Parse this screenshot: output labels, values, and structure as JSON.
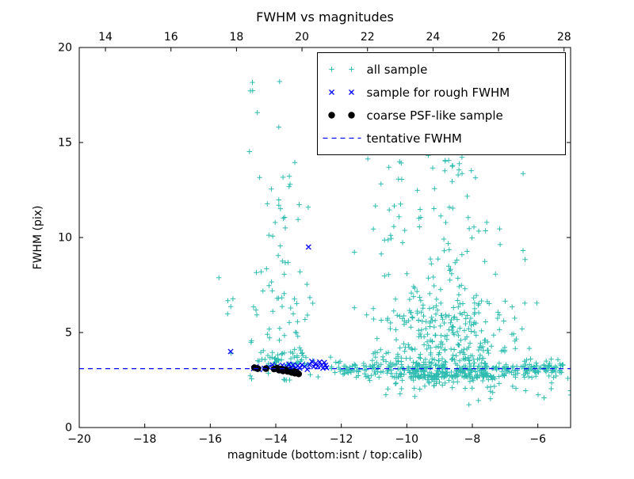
{
  "chart_data": {
    "type": "scatter",
    "title": "FWHM vs magnitudes",
    "xlabel": "magnitude (bottom:isnt / top:calib)",
    "ylabel": "FWHM (pix)",
    "grid": false,
    "legend": {
      "position": "upper right"
    },
    "x_bottom": {
      "min": -20,
      "max": -5,
      "tick_values": [
        -20,
        -18,
        -16,
        -14,
        -12,
        -10,
        -8,
        -6
      ],
      "tick_labels": [
        "−20",
        "−18",
        "−16",
        "−14",
        "−12",
        "−10",
        "−8",
        "−6"
      ]
    },
    "x_top": {
      "offset": 33.2,
      "tick_values": [
        14,
        16,
        18,
        20,
        22,
        24,
        26,
        28
      ],
      "tick_labels": [
        "14",
        "16",
        "18",
        "20",
        "22",
        "24",
        "26",
        "28"
      ]
    },
    "y_axis": {
      "min": 0,
      "max": 20,
      "tick_values": [
        0,
        5,
        10,
        15,
        20
      ],
      "tick_labels": [
        "0",
        "5",
        "10",
        "15",
        "20"
      ]
    },
    "tentative_fwhm": 3.1,
    "series": [
      {
        "id": "all-sample",
        "name": "all sample",
        "marker": "plus",
        "color": "#2fbcb0",
        "seed": 20,
        "clusters": [
          {
            "count": 55,
            "x": {
              "dist": "normal",
              "mean": -13.75,
              "sigma": 0.45,
              "clip": [
                -15.0,
                -12.4
              ]
            },
            "y": {
              "dist": "normal",
              "mean": 3.4,
              "sigma": 0.45,
              "clip": [
                2.5,
                4.8
              ]
            }
          },
          {
            "count": 80,
            "x": {
              "dist": "normal",
              "mean": -13.8,
              "sigma": 0.45,
              "clip": [
                -15.1,
                -12.5
              ]
            },
            "y": {
              "dist": "pow",
              "base": 3.5,
              "p": 1.6,
              "scale": 10.5,
              "clip": [
                3.5,
                14.2
              ]
            }
          },
          {
            "count": 7,
            "x": {
              "dist": "normal",
              "mean": -14.2,
              "sigma": 0.5,
              "clip": [
                -15.0,
                -13.0
              ]
            },
            "y": {
              "dist": "uniform",
              "min": 14.5,
              "max": 18.7
            }
          },
          {
            "count": 6,
            "x": {
              "dist": "normal",
              "mean": -15.4,
              "sigma": 0.2,
              "clip": [
                -15.8,
                -15.0
              ]
            },
            "y": {
              "dist": "normal",
              "mean": 6.0,
              "sigma": 1.8,
              "clip": [
                3.5,
                9.0
              ]
            }
          },
          {
            "count": 430,
            "x": {
              "dist": "normal",
              "mean": -8.7,
              "sigma": 1.05,
              "clip": [
                -11.6,
                -5.0
              ]
            },
            "y": {
              "dist": "pow",
              "base": 2.65,
              "p": 2.2,
              "scale": 4.0,
              "clip": [
                0.5,
                19.5
              ]
            }
          },
          {
            "count": 130,
            "x": {
              "dist": "normal",
              "mean": -8.9,
              "sigma": 0.95,
              "clip": [
                -11.9,
                -6.0
              ]
            },
            "y": {
              "dist": "pow",
              "base": 5.5,
              "p": 1.4,
              "scale": 9.0,
              "clip": [
                5.5,
                15.5
              ]
            }
          },
          {
            "count": 260,
            "x": {
              "dist": "uniform",
              "min": -12.4,
              "max": -5.0
            },
            "y": {
              "dist": "normal",
              "mean": 3.1,
              "sigma": 0.22,
              "clip": [
                2.4,
                3.9
              ]
            }
          },
          {
            "count": 70,
            "x": {
              "dist": "normal",
              "mean": -8.0,
              "sigma": 1.4,
              "clip": [
                -11.5,
                -5.0
              ]
            },
            "y": {
              "dist": "normal",
              "mean": 2.3,
              "sigma": 0.35,
              "clip": [
                1.2,
                3.0
              ]
            }
          },
          {
            "count": 6,
            "x": {
              "dist": "normal",
              "mean": -10.8,
              "sigma": 0.4,
              "clip": [
                -11.6,
                -10.2
              ]
            },
            "y": {
              "dist": "uniform",
              "min": 9.0,
              "max": 14.5
            }
          }
        ]
      },
      {
        "id": "rough-fwhm-sample",
        "name": "sample for rough FWHM",
        "marker": "x",
        "color": "#0000ff",
        "points": [
          [
            -15.38,
            4.0
          ],
          [
            -14.68,
            3.1
          ],
          [
            -14.6,
            3.2
          ],
          [
            -14.5,
            3.05
          ],
          [
            -14.35,
            3.12
          ],
          [
            -14.22,
            3.18
          ],
          [
            -14.1,
            3.3
          ],
          [
            -14.02,
            3.1
          ],
          [
            -13.95,
            3.22
          ],
          [
            -13.88,
            3.12
          ],
          [
            -13.8,
            3.28
          ],
          [
            -13.73,
            3.08
          ],
          [
            -13.66,
            3.2
          ],
          [
            -13.6,
            3.34
          ],
          [
            -13.53,
            3.15
          ],
          [
            -13.47,
            3.3
          ],
          [
            -13.4,
            3.1
          ],
          [
            -13.33,
            3.25
          ],
          [
            -13.27,
            3.12
          ],
          [
            -13.2,
            3.3
          ],
          [
            -13.12,
            3.2
          ],
          [
            -13.04,
            3.06
          ],
          [
            -12.97,
            3.3
          ],
          [
            -12.9,
            3.48
          ],
          [
            -12.84,
            3.2
          ],
          [
            -12.78,
            3.38
          ],
          [
            -12.72,
            3.22
          ],
          [
            -12.66,
            3.45
          ],
          [
            -12.6,
            3.3
          ],
          [
            -12.56,
            3.12
          ],
          [
            -12.52,
            3.42
          ],
          [
            -12.48,
            3.28
          ],
          [
            -12.45,
            3.15
          ],
          [
            -13.0,
            9.5
          ]
        ]
      },
      {
        "id": "psf-like-sample",
        "name": "coarse PSF-like sample",
        "marker": "dot",
        "color": "#000000",
        "points": [
          [
            -14.65,
            3.15
          ],
          [
            -14.55,
            3.1
          ],
          [
            -14.3,
            3.1
          ],
          [
            -14.05,
            3.08
          ],
          [
            -13.96,
            3.12
          ],
          [
            -13.9,
            3.02
          ],
          [
            -13.84,
            3.08
          ],
          [
            -13.78,
            2.98
          ],
          [
            -13.7,
            3.04
          ],
          [
            -13.64,
            2.95
          ],
          [
            -13.58,
            3.0
          ],
          [
            -13.52,
            2.9
          ],
          [
            -13.47,
            2.96
          ],
          [
            -13.42,
            2.86
          ],
          [
            -13.37,
            2.92
          ],
          [
            -13.3,
            2.82
          ]
        ]
      },
      {
        "id": "tentative-fwhm",
        "name": "tentative FWHM",
        "type": "hline",
        "style": "dashed",
        "color": "#0000ff",
        "y": 3.1
      }
    ]
  }
}
